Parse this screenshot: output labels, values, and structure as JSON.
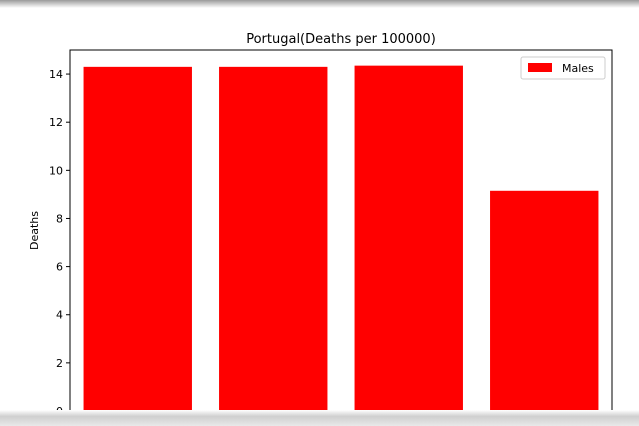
{
  "chart_data": {
    "type": "bar",
    "title": "Portugal(Deaths per 100000)",
    "xlabel": "",
    "ylabel": "Deaths",
    "categories": [
      "",
      "",
      "",
      ""
    ],
    "series": [
      {
        "name": "Males",
        "color": "#ff0000",
        "values": [
          14.3,
          14.3,
          14.35,
          9.15
        ]
      }
    ],
    "ylim": [
      0,
      15
    ],
    "yticks": [
      0,
      2,
      4,
      6,
      8,
      10,
      12,
      14
    ],
    "grid": false,
    "legend_position": "top-right"
  }
}
